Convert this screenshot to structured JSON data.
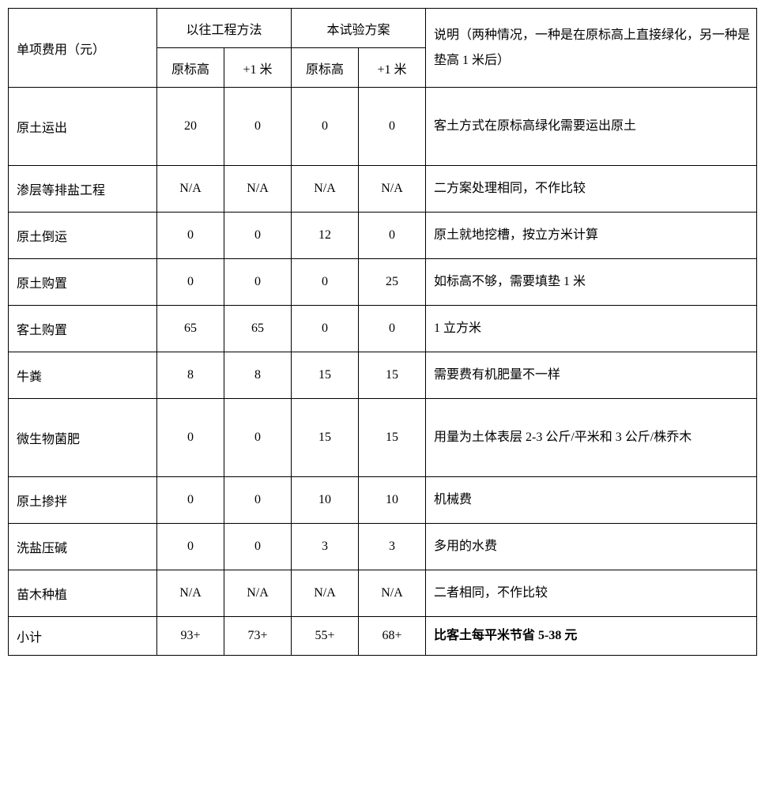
{
  "header": {
    "rowLabel": "单项费用（元）",
    "group1": "以往工程方法",
    "group2": "本试验方案",
    "sub_a": "原标高",
    "sub_b": "+1 米",
    "desc": "说明（两种情况，一种是在原标高上直接绿化，另一种是垫高 1 米后）"
  },
  "rows": [
    {
      "label": "原土运出",
      "v": [
        "20",
        "0",
        "0",
        "0"
      ],
      "desc": "客土方式在原标高绿化需要运出原土",
      "h": "tall"
    },
    {
      "label": "渗层等排盐工程",
      "v": [
        "N/A",
        "N/A",
        "N/A",
        "N/A"
      ],
      "desc": "二方案处理相同，不作比较",
      "h": "short"
    },
    {
      "label": "原土倒运",
      "v": [
        "0",
        "0",
        "12",
        "0"
      ],
      "desc": "原土就地挖槽，按立方米计算",
      "h": "short"
    },
    {
      "label": "原土购置",
      "v": [
        "0",
        "0",
        "0",
        "25"
      ],
      "desc": "如标高不够，需要填垫 1 米",
      "h": "short"
    },
    {
      "label": "客土购置",
      "v": [
        "65",
        "65",
        "0",
        "0"
      ],
      "desc": "1 立方米",
      "h": "short"
    },
    {
      "label": "牛粪",
      "v": [
        "8",
        "8",
        "15",
        "15"
      ],
      "desc": "需要费有机肥量不一样",
      "h": "short"
    },
    {
      "label": "微生物菌肥",
      "v": [
        "0",
        "0",
        "15",
        "15"
      ],
      "desc": "用量为土体表层 2-3 公斤/平米和 3 公斤/株乔木",
      "h": "tall"
    },
    {
      "label": "原土掺拌",
      "v": [
        "0",
        "0",
        "10",
        "10"
      ],
      "desc": "机械费",
      "h": "short"
    },
    {
      "label": "洗盐压碱",
      "v": [
        "0",
        "0",
        "3",
        "3"
      ],
      "desc": "多用的水费",
      "h": "short"
    },
    {
      "label": "苗木种植",
      "v": [
        "N/A",
        "N/A",
        "N/A",
        "N/A"
      ],
      "desc": "二者相同，不作比较",
      "h": "short"
    },
    {
      "label": "小计",
      "v": [
        "93+",
        "73+",
        "55+",
        "68+"
      ],
      "desc": "比客土每平米节省 5-38 元",
      "h": "small",
      "bold": true
    }
  ]
}
